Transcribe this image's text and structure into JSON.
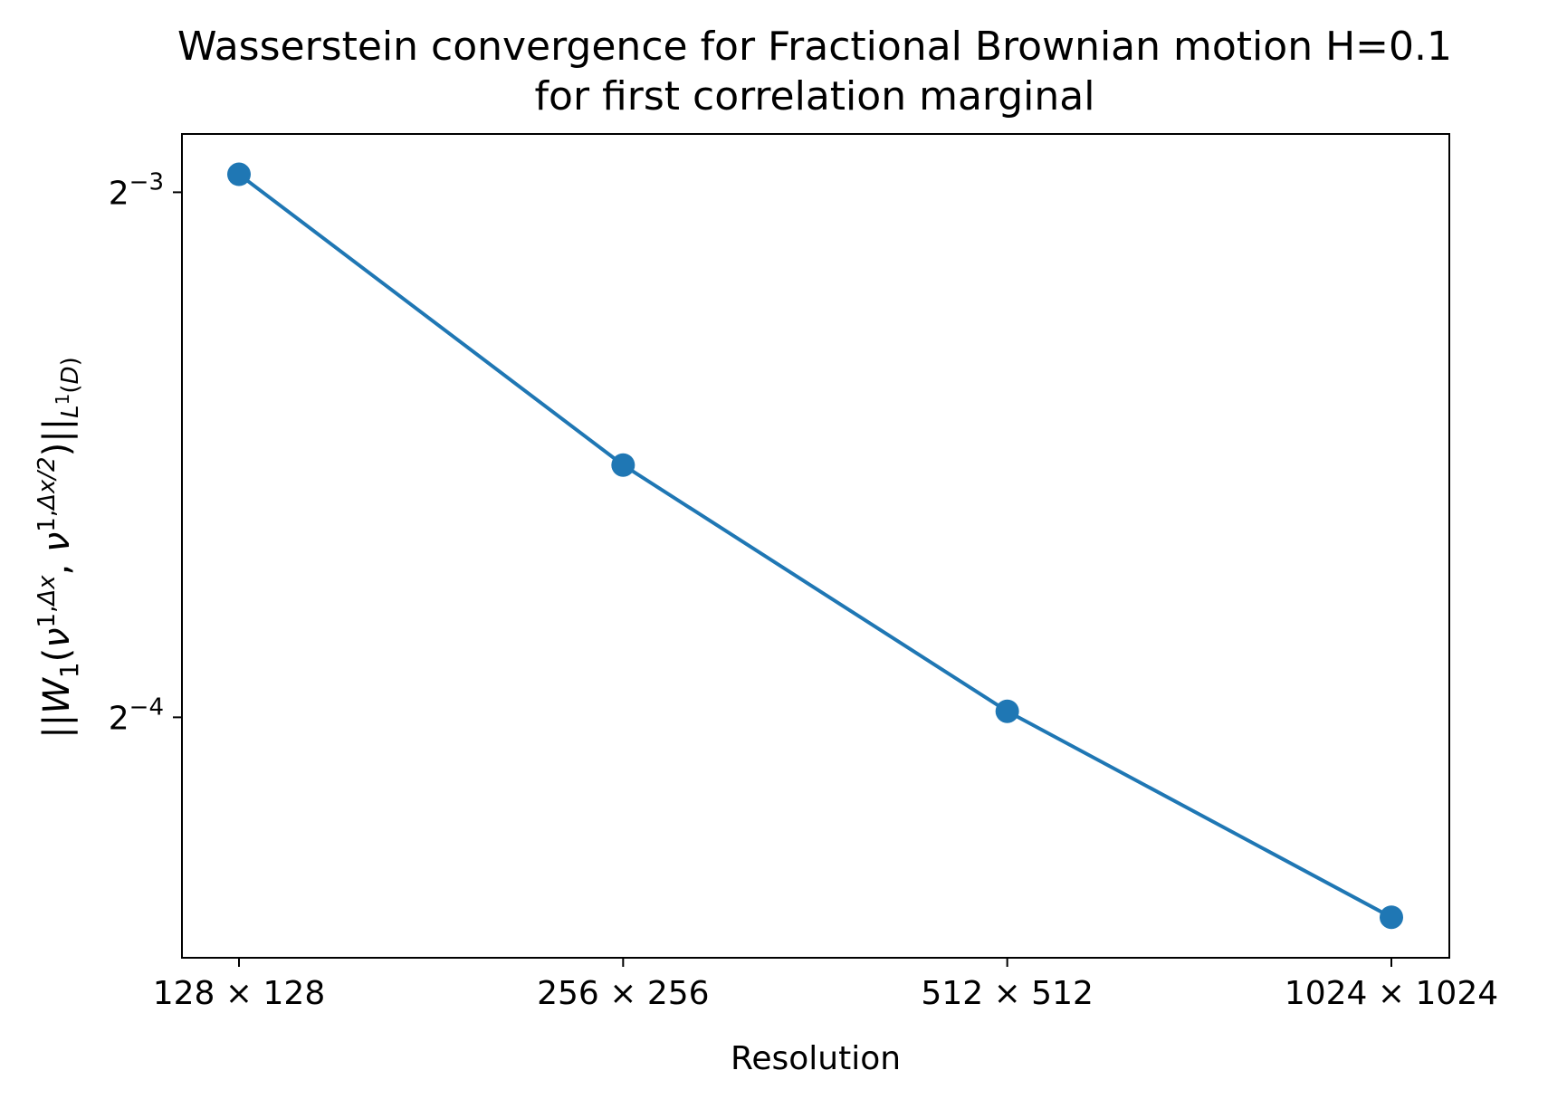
{
  "chart_data": {
    "type": "line",
    "title": "Wasserstein convergence for Fractional Brownian motion H=0.1",
    "subtitle": "for first correlation marginal",
    "xlabel": "Resolution",
    "ylabel": "||W_1(ν^{1,Δx}, ν^{1,Δx/2})||_{L^1(D)}",
    "y_scale": "log2",
    "categories": [
      "128 × 128",
      "256 × 256",
      "512 × 512",
      "1024 × 1024"
    ],
    "series": [
      {
        "values": [
          0.128,
          0.0872,
          0.063,
          0.048
        ],
        "color": "#1f77b4"
      }
    ],
    "yticks": [
      {
        "value": 0.125,
        "base": "2",
        "exp": "−3"
      },
      {
        "value": 0.0625,
        "base": "2",
        "exp": "−4"
      }
    ],
    "ylim": [
      0.0455,
      0.135
    ],
    "grid": false,
    "legend": "none"
  }
}
